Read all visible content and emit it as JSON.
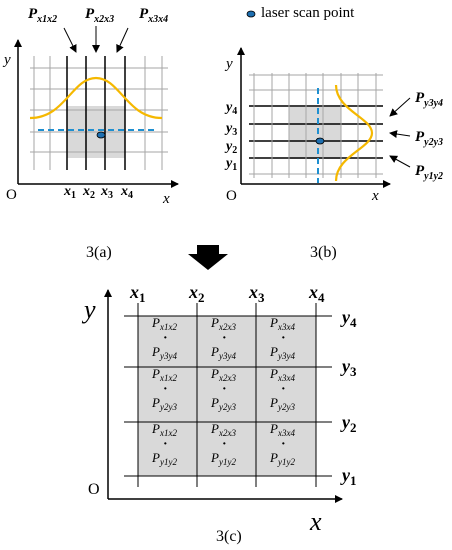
{
  "legend": {
    "label": "laser scan point"
  },
  "captions": {
    "a": "3(a)",
    "b": "3(b)",
    "c": "3(c)"
  },
  "origin": "O",
  "axes": {
    "x": "x",
    "y": "y"
  },
  "x_grid": {
    "letter": "x",
    "subs": [
      "1",
      "2",
      "3",
      "4"
    ]
  },
  "y_grid": {
    "letter": "y",
    "subs": [
      "1",
      "2",
      "3",
      "4"
    ]
  },
  "panel_a": {
    "annotations": [
      {
        "base": "P",
        "sub": "x1x2"
      },
      {
        "base": "P",
        "sub": "x2x3"
      },
      {
        "base": "P",
        "sub": "x3x4"
      }
    ]
  },
  "panel_b": {
    "annotations": [
      {
        "base": "P",
        "sub": "y3y4"
      },
      {
        "base": "P",
        "sub": "y2y3"
      },
      {
        "base": "P",
        "sub": "y1y2"
      }
    ]
  },
  "panel_c": {
    "cells": [
      {
        "top": "x1x2",
        "bottom": "y3y4"
      },
      {
        "top": "x2x3",
        "bottom": "y3y4"
      },
      {
        "top": "x3x4",
        "bottom": "y3y4"
      },
      {
        "top": "x1x2",
        "bottom": "y2y3"
      },
      {
        "top": "x2x3",
        "bottom": "y2y3"
      },
      {
        "top": "x3x4",
        "bottom": "y2y3"
      },
      {
        "top": "x1x2",
        "bottom": "y1y2"
      },
      {
        "top": "x2x3",
        "bottom": "y1y2"
      },
      {
        "top": "x3x4",
        "bottom": "y1y2"
      }
    ],
    "cell_base": "P",
    "dot": "·"
  },
  "colors": {
    "gaussian": "#f5b800",
    "scan_line": "#1e8fd0",
    "scan_point": "#1e6fb0",
    "cell_fill": "#d9d9d9",
    "grid": "#000000",
    "grid_light": "#a6a6a6",
    "arrow_down": "#000000"
  }
}
